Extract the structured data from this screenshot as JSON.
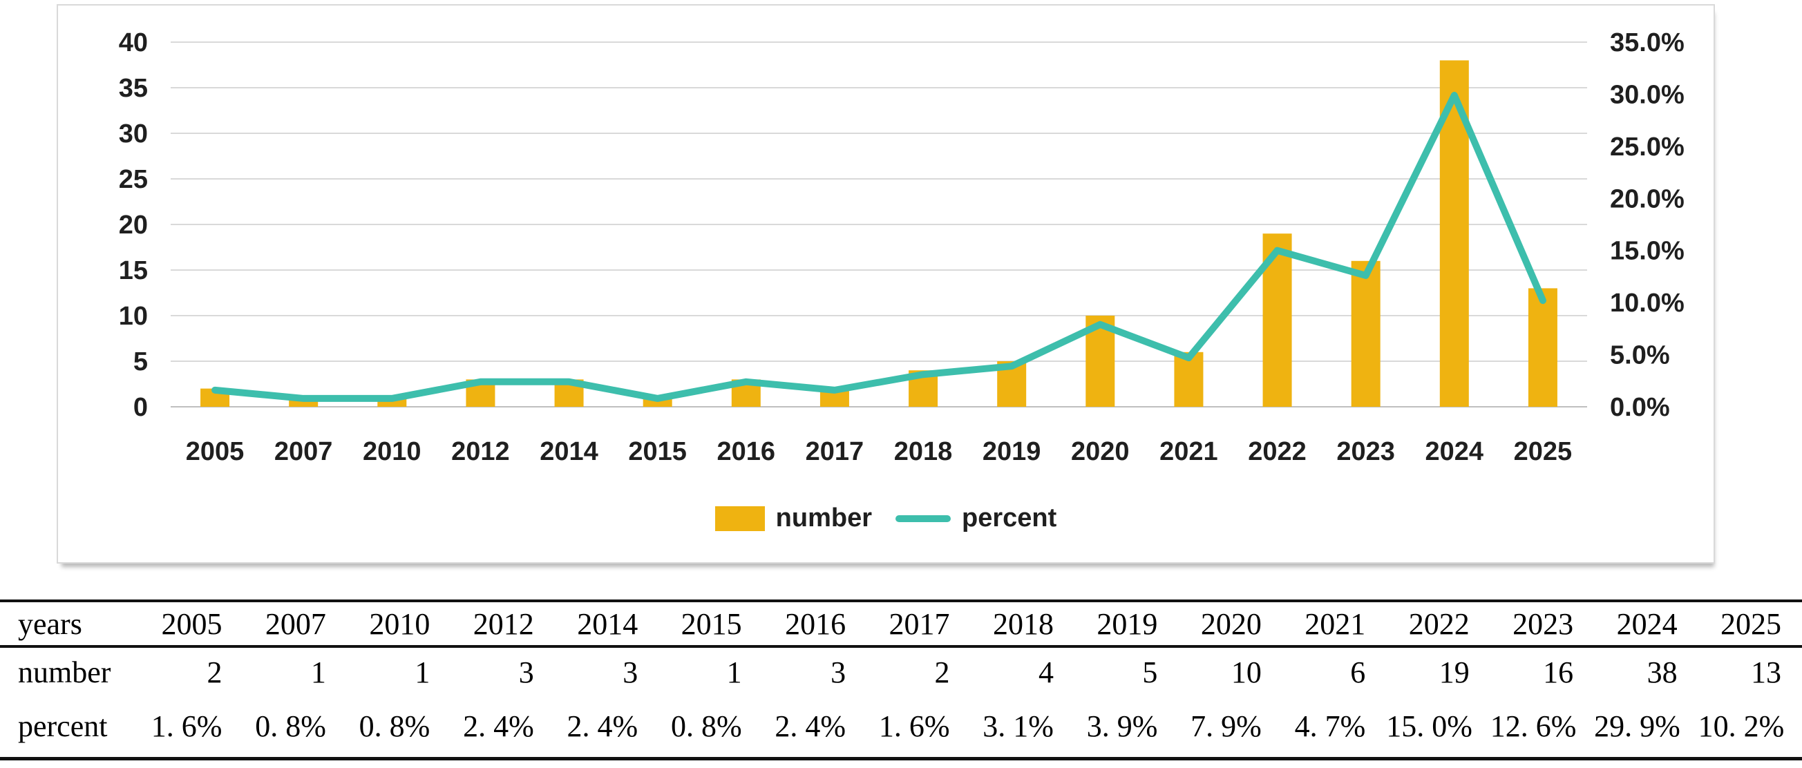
{
  "chart_data": {
    "type": "bar+line",
    "categories": [
      "2005",
      "2007",
      "2010",
      "2012",
      "2014",
      "2015",
      "2016",
      "2017",
      "2018",
      "2019",
      "2020",
      "2021",
      "2022",
      "2023",
      "2024",
      "2025"
    ],
    "series": [
      {
        "name": "number",
        "type": "bar",
        "axis": "left",
        "values": [
          2,
          1,
          1,
          3,
          3,
          1,
          3,
          2,
          4,
          5,
          10,
          6,
          19,
          16,
          38,
          13
        ]
      },
      {
        "name": "percent",
        "type": "line",
        "axis": "right",
        "values": [
          1.6,
          0.8,
          0.8,
          2.4,
          2.4,
          0.8,
          2.4,
          1.6,
          3.1,
          3.9,
          7.9,
          4.7,
          15.0,
          12.6,
          29.9,
          10.2
        ]
      }
    ],
    "left_axis": {
      "min": 0,
      "max": 40,
      "tick_labels": [
        "0",
        "5",
        "10",
        "15",
        "20",
        "25",
        "30",
        "35",
        "40"
      ]
    },
    "right_axis": {
      "min": 0,
      "max": 35,
      "tick_labels": [
        "0.0%",
        "5.0%",
        "10.0%",
        "15.0%",
        "20.0%",
        "25.0%",
        "30.0%",
        "35.0%"
      ]
    },
    "grid": "horizontal",
    "legend": {
      "position": "bottom-center",
      "items": [
        {
          "label": "number",
          "swatch": "bar"
        },
        {
          "label": "percent",
          "swatch": "line"
        }
      ]
    },
    "colors": {
      "bar": "#EFB311",
      "line": "#3DBEAC",
      "gridline": "#D9D9D9",
      "axis_line": "#BFBFBF",
      "text": "#1F1F1F",
      "panel_border": "#D9D9D9",
      "table_rule": "#111111"
    }
  },
  "table": {
    "rows": [
      {
        "key": "years",
        "label": "years",
        "cells": [
          "2005",
          "2007",
          "2010",
          "2012",
          "2014",
          "2015",
          "2016",
          "2017",
          "2018",
          "2019",
          "2020",
          "2021",
          "2022",
          "2023",
          "2024",
          "2025"
        ]
      },
      {
        "key": "number",
        "label": "number",
        "cells": [
          "2",
          "1",
          "1",
          "3",
          "3",
          "1",
          "3",
          "2",
          "4",
          "5",
          "10",
          "6",
          "19",
          "16",
          "38",
          "13"
        ]
      },
      {
        "key": "percent",
        "label": "percent",
        "cells": [
          "1. 6%",
          "0. 8%",
          "0. 8%",
          "2. 4%",
          "2. 4%",
          "0. 8%",
          "2. 4%",
          "1. 6%",
          "3. 1%",
          "3. 9%",
          "7. 9%",
          "4. 7%",
          "15. 0%",
          "12. 6%",
          "29. 9%",
          "10. 2%"
        ]
      }
    ]
  }
}
